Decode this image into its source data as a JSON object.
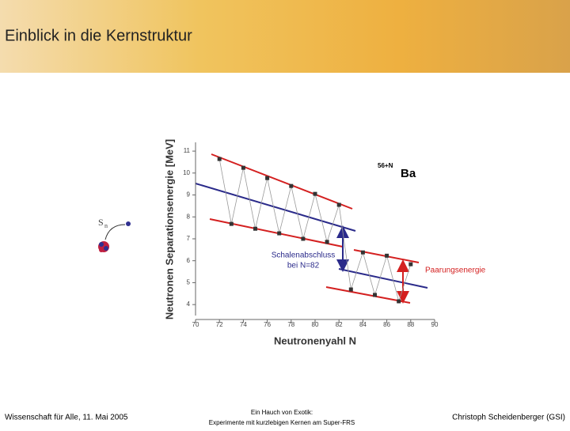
{
  "slide": {
    "title": "Einblick in die Kernstruktur",
    "footer_left": "Wissenschaft für Alle, 11. Mai 2005",
    "footer_center_1": "Ein Hauch von Exotik:",
    "footer_center_2": "Experimente mit kurzlebigen Kernen am Super-FRS",
    "footer_right": "Christoph Scheidenberger (GSI)",
    "icon_symbol": "S",
    "icon_subscript": "n"
  },
  "chart_data": {
    "type": "line",
    "x_label": "Neutronenyahl N",
    "y_label": "Neutronen Separationsenergie [MeV]",
    "nucleus_mass": "56+N",
    "nucleus_element": "Ba",
    "annotation_shell_1": "Schalenabschluss",
    "annotation_shell_2": "bei N=82",
    "annotation_pairing": "Paarungsenergie",
    "x": [
      72,
      73,
      74,
      75,
      76,
      77,
      78,
      79,
      80,
      81,
      82,
      83,
      84,
      85,
      86,
      87,
      88
    ],
    "series": [
      {
        "color": "#333333",
        "values": [
          10.64,
          7.68,
          10.24,
          7.46,
          9.77,
          7.25,
          9.41,
          7.0,
          9.05,
          6.86,
          8.55,
          4.69,
          6.38,
          4.44,
          6.23,
          4.15,
          5.84
        ]
      }
    ],
    "xlim": [
      70,
      90
    ],
    "xticks": [
      70,
      72,
      74,
      76,
      78,
      80,
      82,
      84,
      86,
      88,
      90
    ],
    "ylim": [
      3.5,
      11.4
    ],
    "yticks": [
      4,
      5,
      6,
      7,
      8,
      9,
      10,
      11
    ]
  }
}
